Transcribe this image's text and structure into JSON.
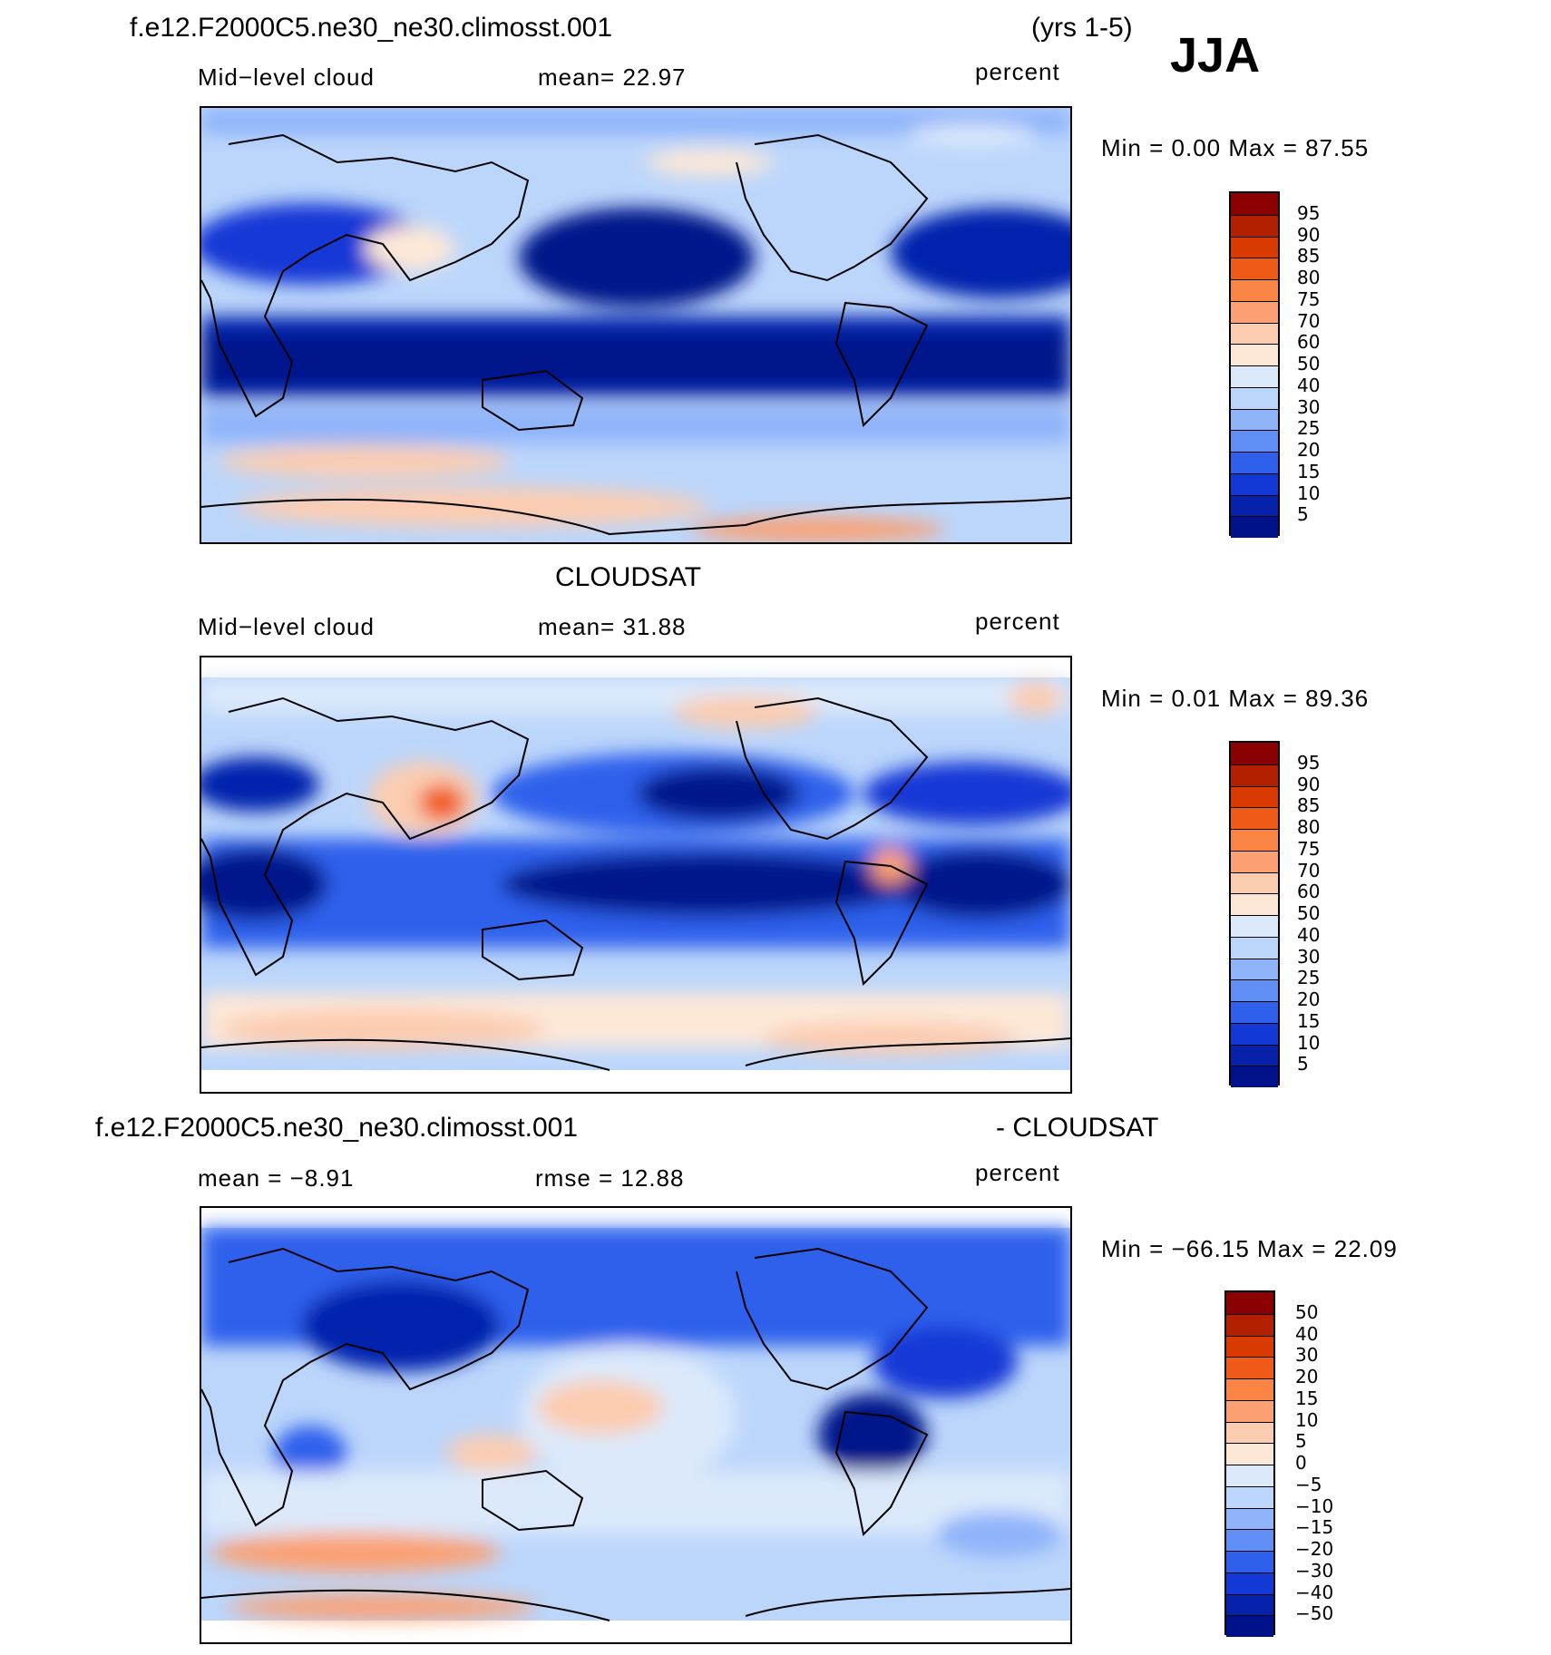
{
  "header": {
    "case_title": "f.e12.F2000C5.ne30_ne30.climosst.001",
    "years": "(yrs 1-5)",
    "season": "JJA"
  },
  "panel1": {
    "left": "Mid−level cloud",
    "center": "mean=   22.97",
    "right": "percent",
    "stats": "Min =    0.00 Max =   87.55"
  },
  "panel2": {
    "title": "CLOUDSAT",
    "left": "Mid−level cloud",
    "center": "mean=   31.88",
    "right": "percent",
    "stats": "Min =    0.01 Max =   89.36"
  },
  "panel3": {
    "title_left": "f.e12.F2000C5.ne30_ne30.climosst.001",
    "title_right": "- CLOUDSAT",
    "left": "mean =   −8.91",
    "center": "rmse =   12.88",
    "right": "percent",
    "stats": "Min = −66.15 Max =   22.09"
  },
  "colorbar_abs": {
    "labels": [
      "95",
      "90",
      "85",
      "80",
      "75",
      "70",
      "60",
      "50",
      "40",
      "30",
      "25",
      "20",
      "15",
      "10",
      "5"
    ],
    "colors": [
      "#8b0000",
      "#b22000",
      "#d83a00",
      "#f05a18",
      "#fa8444",
      "#fba072",
      "#fcccb0",
      "#fde8d8",
      "#dbe9fb",
      "#bcd6fb",
      "#8fb4fa",
      "#5f8ef5",
      "#2f60ec",
      "#1238d6",
      "#0622ad",
      "#00128a"
    ]
  },
  "colorbar_diff": {
    "labels": [
      "50",
      "40",
      "30",
      "20",
      "15",
      "10",
      "5",
      "0",
      "−5",
      "−10",
      "−15",
      "−20",
      "−30",
      "−40",
      "−50"
    ],
    "colors": [
      "#8b0000",
      "#b22000",
      "#d83a00",
      "#f05a18",
      "#fa8444",
      "#fba072",
      "#fcccb0",
      "#fde8d8",
      "#dbe9fb",
      "#bcd6fb",
      "#8fb4fa",
      "#5f8ef5",
      "#2f60ec",
      "#1238d6",
      "#0622ad",
      "#00128a"
    ]
  }
}
